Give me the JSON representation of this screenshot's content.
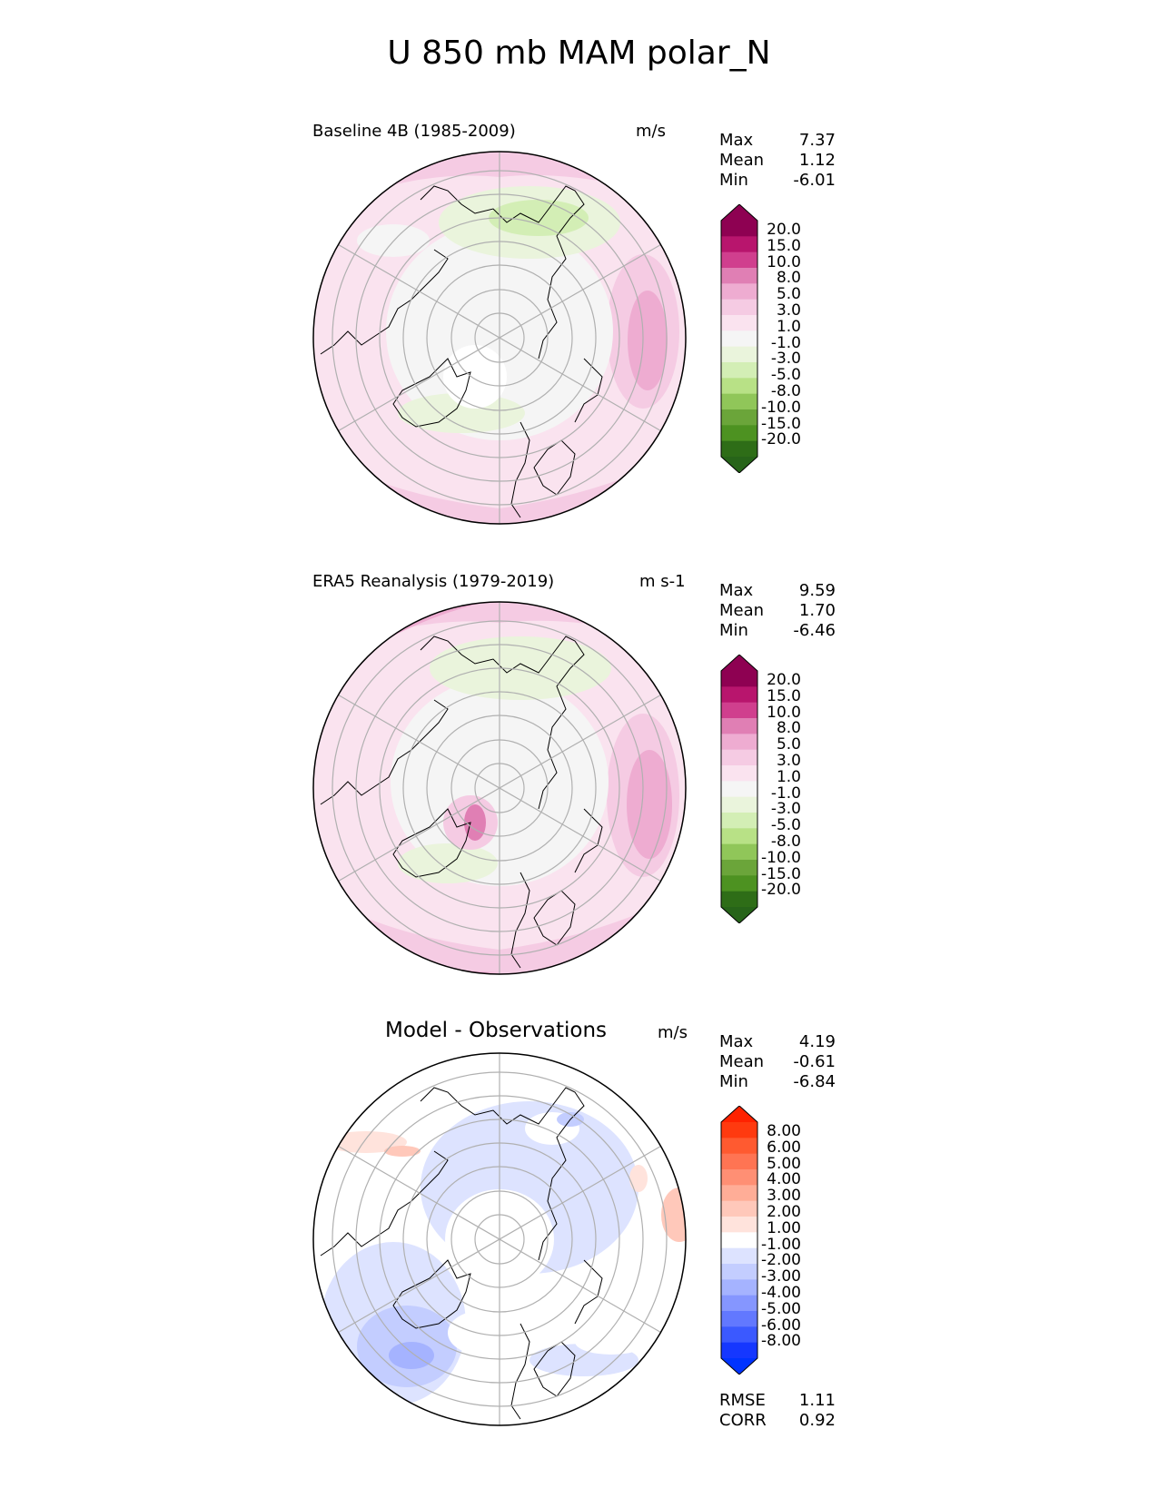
{
  "title": "U 850 mb MAM polar_N",
  "panels": [
    {
      "label": "Baseline 4B (1985-2009)",
      "units": "m/s",
      "stats": [
        {
          "name": "Max",
          "value": "7.37"
        },
        {
          "name": "Mean",
          "value": "1.12"
        },
        {
          "name": "Min",
          "value": "-6.01"
        }
      ],
      "colorbar": {
        "ticks": [
          "20.0",
          "15.0",
          "10.0",
          "8.0",
          "5.0",
          "3.0",
          "1.0",
          "-1.0",
          "-3.0",
          "-5.0",
          "-8.0",
          "-10.0",
          "-15.0",
          "-20.0"
        ],
        "colors": [
          "#8e0152",
          "#b8156d",
          "#d03f8e",
          "#e07fb4",
          "#eeacd1",
          "#f5cbe3",
          "#fae3ef",
          "#f5f5f5",
          "#eaf4dc",
          "#d3eeb5",
          "#b8e186",
          "#90c659",
          "#6ba53a",
          "#4d9221",
          "#2e6d17"
        ],
        "extend_top": "#8e0152",
        "extend_bottom": "#276419"
      }
    },
    {
      "label": "ERA5 Reanalysis (1979-2019)",
      "units": "m s-1",
      "stats": [
        {
          "name": "Max",
          "value": "9.59"
        },
        {
          "name": "Mean",
          "value": "1.70"
        },
        {
          "name": "Min",
          "value": "-6.46"
        }
      ],
      "colorbar": {
        "ticks": [
          "20.0",
          "15.0",
          "10.0",
          "8.0",
          "5.0",
          "3.0",
          "1.0",
          "-1.0",
          "-3.0",
          "-5.0",
          "-8.0",
          "-10.0",
          "-15.0",
          "-20.0"
        ],
        "colors": [
          "#8e0152",
          "#b8156d",
          "#d03f8e",
          "#e07fb4",
          "#eeacd1",
          "#f5cbe3",
          "#fae3ef",
          "#f5f5f5",
          "#eaf4dc",
          "#d3eeb5",
          "#b8e186",
          "#90c659",
          "#6ba53a",
          "#4d9221",
          "#2e6d17"
        ],
        "extend_top": "#8e0152",
        "extend_bottom": "#276419"
      }
    },
    {
      "label": "Model - Observations",
      "units": "m/s",
      "stats": [
        {
          "name": "Max",
          "value": "4.19"
        },
        {
          "name": "Mean",
          "value": "-0.61"
        },
        {
          "name": "Min",
          "value": "-6.84"
        }
      ],
      "extra_stats": [
        {
          "name": "RMSE",
          "value": "1.11"
        },
        {
          "name": "CORR",
          "value": "0.92"
        }
      ],
      "colorbar": {
        "ticks": [
          "8.00",
          "6.00",
          "5.00",
          "4.00",
          "3.00",
          "2.00",
          "1.00",
          "-1.00",
          "-2.00",
          "-3.00",
          "-4.00",
          "-5.00",
          "-6.00",
          "-8.00"
        ],
        "colors": [
          "#ff3a0f",
          "#ff5a30",
          "#ff7453",
          "#ff8f74",
          "#ffad97",
          "#ffc8ba",
          "#ffe3dc",
          "#ffffff",
          "#dde3ff",
          "#c3cdff",
          "#a5b3ff",
          "#8596ff",
          "#6278ff",
          "#3b59ff",
          "#1537ff"
        ],
        "extend_top": "#ff2200",
        "extend_bottom": "#0033ff"
      }
    }
  ]
}
